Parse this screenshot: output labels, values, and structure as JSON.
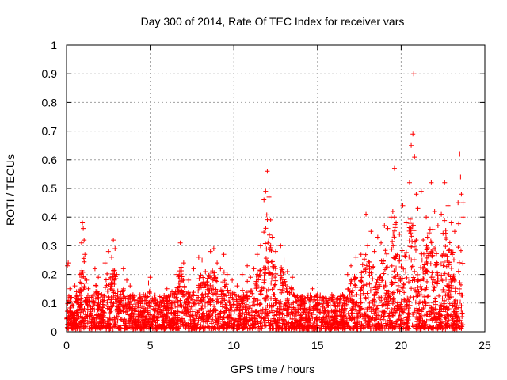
{
  "chart_data": {
    "type": "scatter",
    "title": "Day 300 of 2014, Rate Of TEC Index for receiver vars",
    "xlabel": "GPS time / hours",
    "ylabel": "ROTI / TECUs",
    "xlim": [
      0,
      25
    ],
    "ylim": [
      0,
      1
    ],
    "grid": true,
    "x_ticks": [
      0,
      5,
      10,
      15,
      20,
      25
    ],
    "x_tick_labels": [
      "0",
      "5",
      "10",
      "15",
      "20",
      "25"
    ],
    "y_ticks": [
      0,
      0.1,
      0.2,
      0.3,
      0.4,
      0.5,
      0.6,
      0.7,
      0.8,
      0.9,
      1
    ],
    "y_tick_labels": [
      "0",
      "0.1",
      "0.2",
      "0.3",
      "0.4",
      "0.5",
      "0.6",
      "0.7",
      "0.8",
      "0.9",
      "1"
    ],
    "marker": "+",
    "color": "#ff0000",
    "series": [
      {
        "name": "ROTI",
        "points": [
          [
            0.05,
            0.23
          ],
          [
            0.1,
            0.24
          ],
          [
            0.2,
            0.15
          ],
          [
            0.3,
            0.12
          ],
          [
            0.4,
            0.09
          ],
          [
            0.5,
            0.16
          ],
          [
            0.6,
            0.14
          ],
          [
            0.7,
            0.11
          ],
          [
            0.8,
            0.2
          ],
          [
            0.9,
            0.31
          ],
          [
            0.95,
            0.38
          ],
          [
            1.0,
            0.36
          ],
          [
            1.05,
            0.32
          ],
          [
            1.1,
            0.27
          ],
          [
            1.2,
            0.18
          ],
          [
            1.3,
            0.15
          ],
          [
            1.5,
            0.12
          ],
          [
            1.7,
            0.22
          ],
          [
            1.9,
            0.19
          ],
          [
            2.1,
            0.13
          ],
          [
            2.3,
            0.24
          ],
          [
            2.5,
            0.28
          ],
          [
            2.7,
            0.26
          ],
          [
            2.8,
            0.32
          ],
          [
            2.9,
            0.29
          ],
          [
            3.0,
            0.2
          ],
          [
            3.2,
            0.14
          ],
          [
            3.4,
            0.22
          ],
          [
            3.6,
            0.18
          ],
          [
            3.8,
            0.16
          ],
          [
            4.0,
            0.12
          ],
          [
            4.3,
            0.1
          ],
          [
            4.6,
            0.13
          ],
          [
            4.9,
            0.17
          ],
          [
            5.0,
            0.19
          ],
          [
            5.2,
            0.08
          ],
          [
            5.5,
            0.06
          ],
          [
            5.8,
            0.11
          ],
          [
            6.0,
            0.15
          ],
          [
            6.3,
            0.14
          ],
          [
            6.6,
            0.2
          ],
          [
            6.8,
            0.31
          ],
          [
            7.0,
            0.24
          ],
          [
            7.3,
            0.18
          ],
          [
            7.6,
            0.22
          ],
          [
            7.9,
            0.26
          ],
          [
            8.1,
            0.25
          ],
          [
            8.3,
            0.21
          ],
          [
            8.6,
            0.28
          ],
          [
            8.8,
            0.29
          ],
          [
            9.0,
            0.24
          ],
          [
            9.2,
            0.22
          ],
          [
            9.4,
            0.27
          ],
          [
            9.6,
            0.2
          ],
          [
            9.9,
            0.18
          ],
          [
            10.2,
            0.16
          ],
          [
            10.5,
            0.2
          ],
          [
            10.8,
            0.23
          ],
          [
            11.0,
            0.19
          ],
          [
            11.2,
            0.22
          ],
          [
            11.4,
            0.27
          ],
          [
            11.6,
            0.3
          ],
          [
            11.8,
            0.46
          ],
          [
            11.9,
            0.49
          ],
          [
            12.0,
            0.56
          ],
          [
            12.1,
            0.47
          ],
          [
            12.2,
            0.39
          ],
          [
            12.3,
            0.33
          ],
          [
            12.5,
            0.28
          ],
          [
            12.8,
            0.3
          ],
          [
            13.0,
            0.25
          ],
          [
            13.2,
            0.21
          ],
          [
            13.5,
            0.19
          ],
          [
            13.8,
            0.12
          ],
          [
            14.1,
            0.1
          ],
          [
            14.4,
            0.12
          ],
          [
            14.7,
            0.15
          ],
          [
            15.0,
            0.11
          ],
          [
            15.3,
            0.09
          ],
          [
            15.6,
            0.1
          ],
          [
            15.9,
            0.12
          ],
          [
            16.2,
            0.1
          ],
          [
            16.5,
            0.13
          ],
          [
            16.8,
            0.2
          ],
          [
            17.0,
            0.23
          ],
          [
            17.3,
            0.26
          ],
          [
            17.6,
            0.27
          ],
          [
            17.9,
            0.41
          ],
          [
            18.0,
            0.3
          ],
          [
            18.2,
            0.35
          ],
          [
            18.4,
            0.28
          ],
          [
            18.6,
            0.33
          ],
          [
            18.8,
            0.31
          ],
          [
            19.0,
            0.37
          ],
          [
            19.2,
            0.36
          ],
          [
            19.4,
            0.4
          ],
          [
            19.5,
            0.42
          ],
          [
            19.6,
            0.57
          ],
          [
            19.7,
            0.38
          ],
          [
            19.9,
            0.34
          ],
          [
            20.1,
            0.44
          ],
          [
            20.3,
            0.38
          ],
          [
            20.5,
            0.52
          ],
          [
            20.6,
            0.65
          ],
          [
            20.7,
            0.69
          ],
          [
            20.75,
            0.9
          ],
          [
            20.8,
            0.61
          ],
          [
            20.9,
            0.48
          ],
          [
            21.0,
            0.43
          ],
          [
            21.2,
            0.49
          ],
          [
            21.5,
            0.4
          ],
          [
            21.8,
            0.52
          ],
          [
            22.0,
            0.42
          ],
          [
            22.2,
            0.37
          ],
          [
            22.4,
            0.41
          ],
          [
            22.6,
            0.52
          ],
          [
            22.8,
            0.44
          ],
          [
            23.0,
            0.38
          ],
          [
            23.2,
            0.35
          ],
          [
            23.4,
            0.45
          ],
          [
            23.5,
            0.62
          ],
          [
            23.55,
            0.54
          ],
          [
            23.6,
            0.48
          ],
          [
            23.7,
            0.4
          ],
          [
            23.7,
            0.45
          ],
          [
            0.3,
            0.02
          ],
          [
            1.4,
            0.03
          ],
          [
            2.2,
            0.02
          ],
          [
            3.5,
            0.03
          ],
          [
            4.7,
            0.02
          ],
          [
            6.1,
            0.03
          ],
          [
            7.7,
            0.02
          ],
          [
            9.1,
            0.03
          ],
          [
            10.7,
            0.03
          ],
          [
            12.6,
            0.02
          ],
          [
            14.2,
            0.02
          ],
          [
            15.8,
            0.03
          ],
          [
            17.4,
            0.03
          ],
          [
            19.3,
            0.04
          ],
          [
            20.4,
            0.03
          ],
          [
            20.9,
            0.02
          ],
          [
            21.1,
            0.03
          ],
          [
            22.3,
            0.05
          ],
          [
            23.3,
            0.04
          ],
          [
            23.6,
            0.03
          ]
        ]
      }
    ]
  }
}
